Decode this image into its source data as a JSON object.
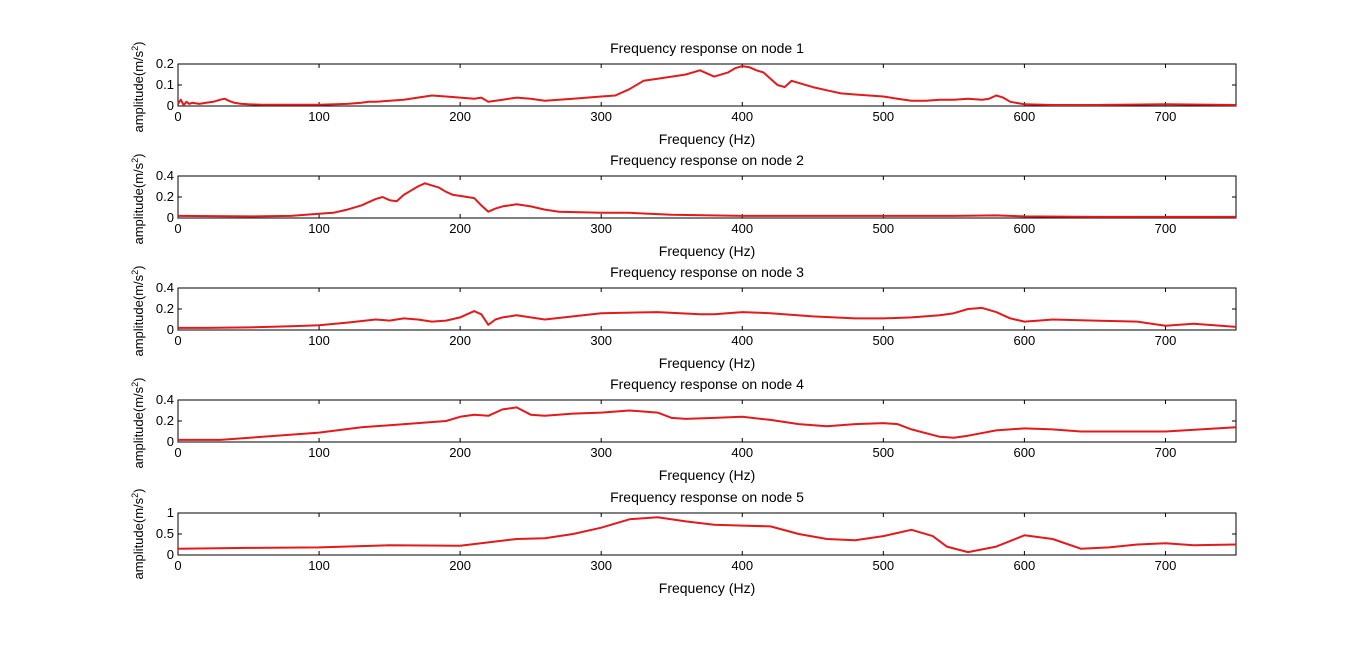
{
  "figure": {
    "background": "#ffffff",
    "line_color": "#e31a1c"
  },
  "chart_data": [
    {
      "type": "line",
      "title": "Frequency response on node 1",
      "xlabel": "Frequency (Hz)",
      "ylabel": "amplitude(m/s",
      "ylabel_sup": "2",
      "ylabel_tail": ")",
      "xlim": [
        0,
        750
      ],
      "ylim": [
        0,
        0.2
      ],
      "xticks": [
        0,
        100,
        200,
        300,
        400,
        500,
        600,
        700
      ],
      "yticks": [
        0,
        0.1,
        0.2
      ],
      "ytick_labels": [
        "0",
        "0.1",
        "0.2"
      ],
      "series": [
        {
          "x": [
            0,
            2,
            4,
            6,
            8,
            10,
            15,
            20,
            25,
            30,
            33,
            36,
            40,
            45,
            50,
            60,
            80,
            100,
            120,
            130,
            135,
            140,
            150,
            160,
            170,
            180,
            190,
            200,
            210,
            215,
            220,
            230,
            240,
            250,
            260,
            280,
            300,
            310,
            320,
            330,
            340,
            350,
            360,
            370,
            380,
            390,
            395,
            400,
            405,
            410,
            415,
            420,
            425,
            430,
            435,
            440,
            450,
            460,
            470,
            480,
            490,
            500,
            510,
            520,
            530,
            540,
            550,
            560,
            570,
            575,
            580,
            585,
            590,
            600,
            620,
            650,
            700,
            750
          ],
          "y": [
            0.01,
            0.03,
            0.005,
            0.02,
            0.01,
            0.015,
            0.01,
            0.015,
            0.02,
            0.03,
            0.035,
            0.025,
            0.015,
            0.01,
            0.008,
            0.006,
            0.006,
            0.006,
            0.01,
            0.015,
            0.02,
            0.02,
            0.025,
            0.03,
            0.04,
            0.05,
            0.045,
            0.04,
            0.035,
            0.04,
            0.02,
            0.03,
            0.04,
            0.035,
            0.025,
            0.035,
            0.045,
            0.05,
            0.08,
            0.12,
            0.13,
            0.14,
            0.15,
            0.17,
            0.14,
            0.16,
            0.18,
            0.19,
            0.185,
            0.17,
            0.16,
            0.13,
            0.1,
            0.09,
            0.12,
            0.11,
            0.09,
            0.075,
            0.06,
            0.055,
            0.05,
            0.045,
            0.035,
            0.025,
            0.025,
            0.03,
            0.03,
            0.035,
            0.03,
            0.035,
            0.05,
            0.04,
            0.02,
            0.008,
            0.005,
            0.005,
            0.008,
            0.005
          ]
        }
      ]
    },
    {
      "type": "line",
      "title": "Frequency response on node 2",
      "xlabel": "Frequency (Hz)",
      "ylabel": "amplitude(m/s",
      "ylabel_sup": "2",
      "ylabel_tail": ")",
      "xlim": [
        0,
        750
      ],
      "ylim": [
        0,
        0.4
      ],
      "xticks": [
        0,
        100,
        200,
        300,
        400,
        500,
        600,
        700
      ],
      "yticks": [
        0,
        0.2,
        0.4
      ],
      "ytick_labels": [
        "0",
        "0.2",
        "0.4"
      ],
      "series": [
        {
          "x": [
            0,
            50,
            80,
            100,
            110,
            120,
            130,
            140,
            145,
            150,
            155,
            160,
            165,
            170,
            175,
            180,
            185,
            190,
            195,
            200,
            210,
            215,
            220,
            225,
            230,
            240,
            250,
            260,
            270,
            300,
            320,
            350,
            400,
            500,
            550,
            580,
            600,
            650,
            700,
            750
          ],
          "y": [
            0.02,
            0.015,
            0.02,
            0.04,
            0.05,
            0.08,
            0.12,
            0.18,
            0.2,
            0.17,
            0.16,
            0.22,
            0.26,
            0.3,
            0.33,
            0.31,
            0.29,
            0.25,
            0.22,
            0.21,
            0.19,
            0.12,
            0.06,
            0.09,
            0.11,
            0.13,
            0.11,
            0.08,
            0.06,
            0.05,
            0.05,
            0.03,
            0.02,
            0.02,
            0.02,
            0.025,
            0.015,
            0.01,
            0.01,
            0.01
          ]
        }
      ]
    },
    {
      "type": "line",
      "title": "Frequency response on node 3",
      "xlabel": "Frequency (Hz)",
      "ylabel": "amplitude(m/s",
      "ylabel_sup": "2",
      "ylabel_tail": ")",
      "xlim": [
        0,
        750
      ],
      "ylim": [
        0,
        0.4
      ],
      "xticks": [
        0,
        100,
        200,
        300,
        400,
        500,
        600,
        700
      ],
      "yticks": [
        0,
        0.2,
        0.4
      ],
      "ytick_labels": [
        "0",
        "0.2",
        "0.4"
      ],
      "series": [
        {
          "x": [
            0,
            20,
            50,
            80,
            100,
            120,
            140,
            150,
            160,
            170,
            180,
            190,
            200,
            210,
            215,
            220,
            225,
            230,
            240,
            250,
            260,
            280,
            300,
            340,
            370,
            380,
            400,
            420,
            450,
            480,
            500,
            520,
            540,
            550,
            560,
            570,
            580,
            590,
            600,
            610,
            620,
            650,
            680,
            700,
            720,
            750
          ],
          "y": [
            0.02,
            0.02,
            0.025,
            0.035,
            0.045,
            0.07,
            0.1,
            0.09,
            0.11,
            0.1,
            0.08,
            0.09,
            0.12,
            0.18,
            0.15,
            0.05,
            0.1,
            0.12,
            0.14,
            0.12,
            0.1,
            0.13,
            0.16,
            0.17,
            0.15,
            0.15,
            0.17,
            0.16,
            0.13,
            0.11,
            0.11,
            0.12,
            0.14,
            0.16,
            0.2,
            0.21,
            0.17,
            0.11,
            0.08,
            0.09,
            0.1,
            0.09,
            0.08,
            0.04,
            0.06,
            0.03
          ]
        }
      ]
    },
    {
      "type": "line",
      "title": "Frequency response on node 4",
      "xlabel": "Frequency (Hz)",
      "ylabel": "amplitude(m/s",
      "ylabel_sup": "2",
      "ylabel_tail": ")",
      "xlim": [
        0,
        750
      ],
      "ylim": [
        0,
        0.4
      ],
      "xticks": [
        0,
        100,
        200,
        300,
        400,
        500,
        600,
        700
      ],
      "yticks": [
        0,
        0.2,
        0.4
      ],
      "ytick_labels": [
        "0",
        "0.2",
        "0.4"
      ],
      "series": [
        {
          "x": [
            0,
            30,
            60,
            100,
            130,
            150,
            170,
            190,
            200,
            210,
            220,
            230,
            240,
            250,
            260,
            280,
            300,
            320,
            340,
            350,
            360,
            380,
            400,
            420,
            440,
            460,
            480,
            500,
            510,
            520,
            540,
            550,
            560,
            580,
            600,
            620,
            640,
            660,
            700,
            750
          ],
          "y": [
            0.02,
            0.02,
            0.05,
            0.09,
            0.14,
            0.16,
            0.18,
            0.2,
            0.24,
            0.26,
            0.25,
            0.31,
            0.33,
            0.26,
            0.25,
            0.27,
            0.28,
            0.3,
            0.28,
            0.23,
            0.22,
            0.23,
            0.24,
            0.21,
            0.17,
            0.15,
            0.17,
            0.18,
            0.17,
            0.12,
            0.05,
            0.04,
            0.06,
            0.11,
            0.13,
            0.12,
            0.1,
            0.1,
            0.1,
            0.14
          ]
        }
      ]
    },
    {
      "type": "line",
      "title": "Frequency response on node 5",
      "xlabel": "Frequency (Hz)",
      "ylabel": "amplitude(m/s",
      "ylabel_sup": "2",
      "ylabel_tail": ")",
      "xlim": [
        0,
        750
      ],
      "ylim": [
        0,
        1
      ],
      "xticks": [
        0,
        100,
        200,
        300,
        400,
        500,
        600,
        700
      ],
      "yticks": [
        0,
        0.5,
        1
      ],
      "ytick_labels": [
        "0",
        "0.5",
        "1"
      ],
      "series": [
        {
          "x": [
            0,
            50,
            100,
            150,
            200,
            220,
            240,
            260,
            280,
            300,
            320,
            340,
            360,
            380,
            400,
            420,
            440,
            460,
            480,
            500,
            520,
            535,
            545,
            560,
            580,
            600,
            620,
            640,
            660,
            680,
            700,
            720,
            750
          ],
          "y": [
            0.15,
            0.17,
            0.18,
            0.23,
            0.22,
            0.3,
            0.38,
            0.4,
            0.5,
            0.65,
            0.85,
            0.9,
            0.8,
            0.72,
            0.7,
            0.68,
            0.5,
            0.38,
            0.35,
            0.45,
            0.6,
            0.45,
            0.2,
            0.07,
            0.2,
            0.47,
            0.38,
            0.15,
            0.18,
            0.25,
            0.28,
            0.23,
            0.25
          ]
        }
      ]
    }
  ]
}
